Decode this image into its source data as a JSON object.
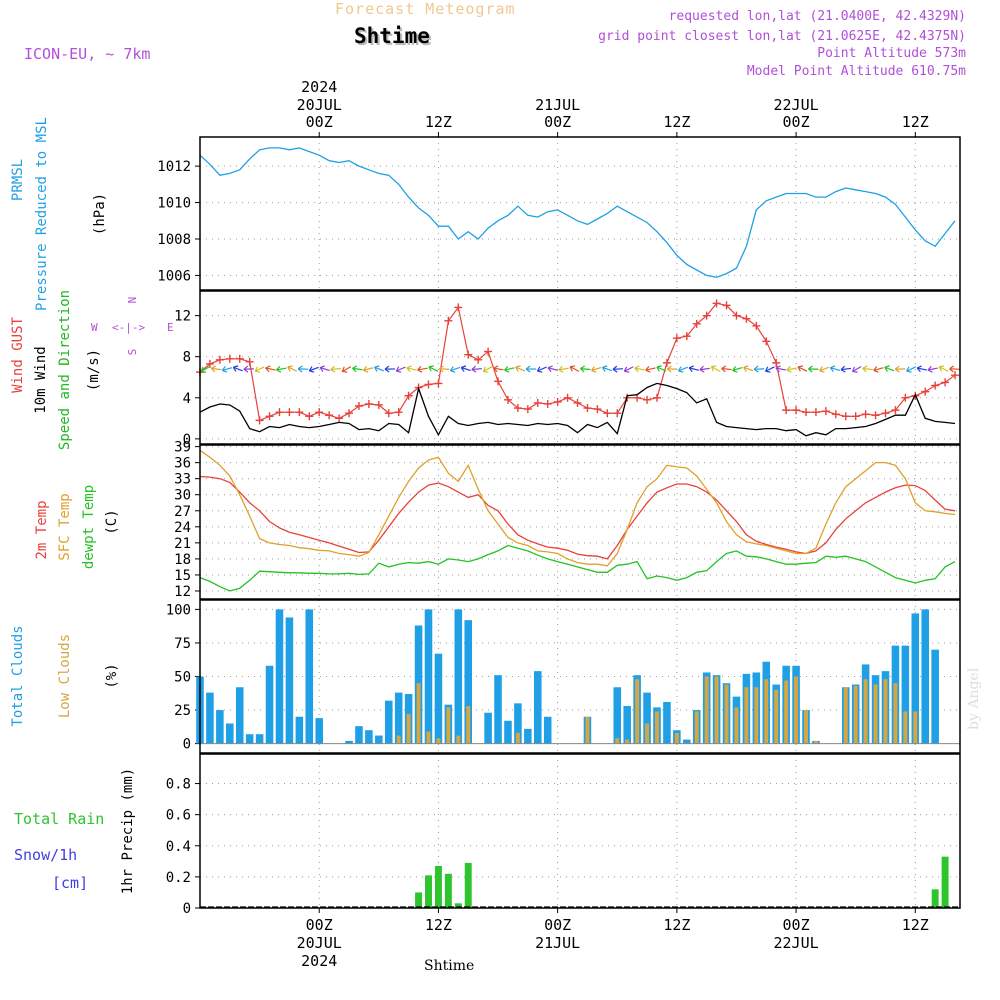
{
  "header": {
    "super_title": "Forecast Meteogram",
    "location": "Shtime",
    "model": "ICON-EU, ~ 7km",
    "requested": "requested lon,lat (21.0400E, 42.4329N)",
    "gridpoint": "grid point closest lon,lat (21.0625E, 42.4375N)",
    "point_alt": "Point Altitude 573m",
    "model_alt": "Model Point Altitude 610.75m",
    "footer_location": "Shtime",
    "watermark": "by Angel"
  },
  "compass": {
    "n": "N",
    "e": "E",
    "w": "W",
    "s": "S",
    "glyph": "<-|->"
  },
  "time_axis": {
    "year": "2024",
    "ticks": [
      {
        "t": 12,
        "label": "00Z",
        "date": "20JUL"
      },
      {
        "t": 24,
        "label": "12Z"
      },
      {
        "t": 36,
        "label": "00Z",
        "date": "21JUL"
      },
      {
        "t": 48,
        "label": "12Z"
      },
      {
        "t": 60,
        "label": "00Z",
        "date": "22JUL"
      },
      {
        "t": 72,
        "label": "12Z"
      }
    ],
    "range_hours": [
      0,
      76.5
    ]
  },
  "colors": {
    "pressure": "#1fa0e6",
    "gust": "#e8413a",
    "wind": "#000000",
    "windlabel": "#22b822",
    "sfc": "#e0a02a",
    "t2m": "#e8413a",
    "dew": "#22c322",
    "total_clouds": "#1fa0e6",
    "low_clouds": "#d8a640",
    "rain": "#2ec42e",
    "snow": "#4040e0",
    "title_meta": "#b24fd8",
    "compass": "#b24fd8",
    "wind_arrow_palette": [
      "#22c322",
      "#e0a02a",
      "#1fa0e6",
      "#2040e0",
      "#9040d0",
      "#d0c020",
      "#e05020"
    ]
  },
  "chart_data": [
    {
      "panel": "pressure",
      "type": "line",
      "ylabel_lines": [
        "PRMSL",
        "Pressure Reduced to MSL"
      ],
      "unit": "(hPa)",
      "ylim": [
        1005.2,
        1013.6
      ],
      "yticks": [
        1006,
        1008,
        1010,
        1012
      ],
      "grid": true,
      "t": [
        0,
        1,
        2,
        3,
        4,
        5,
        6,
        7,
        8,
        9,
        10,
        11,
        12,
        13,
        14,
        15,
        16,
        17,
        18,
        19,
        20,
        21,
        22,
        23,
        24,
        25,
        26,
        27,
        28,
        29,
        30,
        31,
        32,
        33,
        34,
        35,
        36,
        37,
        38,
        39,
        40,
        41,
        42,
        43,
        44,
        45,
        46,
        47,
        48,
        49,
        50,
        51,
        52,
        53,
        54,
        55,
        56,
        57,
        58,
        59,
        60,
        61,
        62,
        63,
        64,
        65,
        66,
        67,
        68,
        69,
        70,
        71,
        72,
        73,
        74,
        75,
        76
      ],
      "values": [
        1012.6,
        1012.1,
        1011.5,
        1011.6,
        1011.8,
        1012.4,
        1012.9,
        1013.0,
        1013.0,
        1012.9,
        1013.0,
        1012.8,
        1012.6,
        1012.3,
        1012.2,
        1012.3,
        1012.0,
        1011.8,
        1011.6,
        1011.5,
        1011.0,
        1010.3,
        1009.7,
        1009.3,
        1008.7,
        1008.7,
        1008.0,
        1008.4,
        1008.0,
        1008.6,
        1009.0,
        1009.3,
        1009.8,
        1009.3,
        1009.2,
        1009.5,
        1009.6,
        1009.3,
        1009.0,
        1008.8,
        1009.1,
        1009.4,
        1009.8,
        1009.5,
        1009.2,
        1008.9,
        1008.4,
        1007.8,
        1007.1,
        1006.6,
        1006.3,
        1006.0,
        1005.9,
        1006.1,
        1006.4,
        1007.6,
        1009.6,
        1010.1,
        1010.3,
        1010.5,
        1010.5,
        1010.5,
        1010.3,
        1010.3,
        1010.6,
        1010.8,
        1010.7,
        1010.6,
        1010.5,
        1010.3,
        1009.9,
        1009.2,
        1008.5,
        1007.9,
        1007.6,
        1008.3,
        1009.0
      ]
    },
    {
      "panel": "wind",
      "type": "line",
      "ylabel_lines": [
        "Wind GUST",
        "10m Wind",
        "Speed and Direction"
      ],
      "unit": "(m/s)",
      "ylim": [
        -0.5,
        14.4
      ],
      "yticks": [
        0,
        4,
        8,
        12
      ],
      "grid": true,
      "t": [
        0,
        1,
        2,
        3,
        4,
        5,
        6,
        7,
        8,
        9,
        10,
        11,
        12,
        13,
        14,
        15,
        16,
        17,
        18,
        19,
        20,
        21,
        22,
        23,
        24,
        25,
        26,
        27,
        28,
        29,
        30,
        31,
        32,
        33,
        34,
        35,
        36,
        37,
        38,
        39,
        40,
        41,
        42,
        43,
        44,
        45,
        46,
        47,
        48,
        49,
        50,
        51,
        52,
        53,
        54,
        55,
        56,
        57,
        58,
        59,
        60,
        61,
        62,
        63,
        64,
        65,
        66,
        67,
        68,
        69,
        70,
        71,
        72,
        73,
        74,
        75,
        76
      ],
      "series": [
        {
          "name": "Wind GUST",
          "values": [
            6.5,
            7.3,
            7.7,
            7.8,
            7.8,
            7.5,
            1.8,
            2.2,
            2.6,
            2.6,
            2.6,
            2.2,
            2.6,
            2.3,
            2.0,
            2.5,
            3.2,
            3.4,
            3.3,
            2.5,
            2.6,
            4.2,
            5.0,
            5.3,
            5.4,
            11.5,
            12.8,
            8.2,
            7.7,
            8.5,
            5.6,
            3.8,
            3.0,
            2.9,
            3.5,
            3.4,
            3.6,
            4.0,
            3.5,
            3.0,
            2.9,
            2.5,
            2.5,
            4.0,
            4.0,
            3.8,
            4.0,
            7.4,
            9.8,
            10.0,
            11.2,
            12.0,
            13.2,
            13.0,
            12.0,
            11.7,
            11.0,
            9.5,
            7.4,
            2.8,
            2.8,
            2.6,
            2.6,
            2.7,
            2.4,
            2.2,
            2.2,
            2.4,
            2.3,
            2.5,
            2.8,
            4.0,
            4.2,
            4.6,
            5.2,
            5.5,
            6.2
          ]
        },
        {
          "name": "10m Wind",
          "values": [
            2.6,
            3.1,
            3.4,
            3.3,
            2.7,
            1.0,
            0.7,
            1.2,
            1.1,
            1.4,
            1.2,
            1.1,
            1.2,
            1.4,
            1.6,
            1.5,
            0.9,
            1.0,
            0.8,
            1.5,
            1.4,
            0.6,
            4.9,
            2.2,
            0.4,
            2.2,
            1.5,
            1.3,
            1.5,
            1.6,
            1.4,
            1.5,
            1.4,
            1.3,
            1.5,
            1.4,
            1.5,
            1.3,
            0.6,
            1.4,
            1.1,
            1.6,
            0.5,
            4.2,
            4.3,
            5.0,
            5.4,
            5.2,
            4.9,
            4.5,
            3.5,
            3.9,
            1.6,
            1.2,
            1.1,
            1.0,
            0.9,
            1.0,
            1.0,
            0.8,
            0.9,
            0.3,
            0.6,
            0.4,
            1.0,
            1.0,
            1.1,
            1.2,
            1.5,
            1.9,
            2.3,
            2.3,
            4.3,
            2.0,
            1.7,
            1.6,
            1.5
          ]
        }
      ],
      "arrows": {
        "y": 6.8,
        "count": 70,
        "note": "wind direction barbs along row"
      }
    },
    {
      "panel": "temperature",
      "type": "line",
      "ylabel_lines": [
        "2m Temp",
        "SFC Temp",
        "dewpt Temp"
      ],
      "unit": "(C)",
      "ylim": [
        10.5,
        39.3
      ],
      "yticks": [
        12,
        15,
        18,
        21,
        24,
        27,
        30,
        33,
        36,
        39
      ],
      "grid": true,
      "t": [
        0,
        1,
        2,
        3,
        4,
        5,
        6,
        7,
        8,
        9,
        10,
        11,
        12,
        13,
        14,
        15,
        16,
        17,
        18,
        19,
        20,
        21,
        22,
        23,
        24,
        25,
        26,
        27,
        28,
        29,
        30,
        31,
        32,
        33,
        34,
        35,
        36,
        37,
        38,
        39,
        40,
        41,
        42,
        43,
        44,
        45,
        46,
        47,
        48,
        49,
        50,
        51,
        52,
        53,
        54,
        55,
        56,
        57,
        58,
        59,
        60,
        61,
        62,
        63,
        64,
        65,
        66,
        67,
        68,
        69,
        70,
        71,
        72,
        73,
        74,
        75,
        76
      ],
      "series": [
        {
          "name": "2m Temp",
          "values": [
            33.4,
            33.3,
            33.0,
            32.3,
            30.5,
            28.5,
            27.0,
            25.0,
            23.8,
            23.0,
            22.5,
            22.0,
            21.5,
            21.0,
            20.4,
            19.8,
            19.2,
            19.3,
            21.5,
            24.0,
            26.5,
            28.6,
            30.5,
            31.8,
            32.2,
            31.5,
            30.5,
            29.5,
            30.0,
            28.0,
            27.0,
            24.5,
            22.5,
            21.5,
            20.8,
            20.2,
            20.0,
            19.6,
            18.9,
            18.6,
            18.5,
            18.0,
            20.5,
            23.5,
            26.0,
            28.5,
            30.5,
            31.3,
            32.0,
            32.0,
            31.5,
            30.5,
            29.0,
            27.0,
            25.0,
            22.5,
            21.3,
            20.7,
            20.2,
            19.8,
            19.3,
            19.0,
            19.5,
            21.0,
            23.5,
            25.5,
            27.0,
            28.5,
            29.5,
            30.5,
            31.3,
            31.8,
            31.7,
            30.8,
            29.0,
            27.3,
            27.0
          ]
        },
        {
          "name": "SFC Temp",
          "values": [
            38.3,
            37.0,
            35.5,
            33.5,
            30.0,
            26.0,
            21.8,
            21.0,
            20.7,
            20.5,
            20.1,
            19.9,
            19.6,
            19.5,
            19.0,
            18.8,
            18.5,
            19.2,
            22.5,
            26.0,
            29.5,
            32.5,
            35.0,
            36.5,
            37.0,
            34.0,
            32.5,
            35.5,
            31.0,
            27.0,
            24.5,
            22.0,
            21.0,
            20.5,
            19.5,
            19.3,
            19.0,
            18.0,
            17.3,
            17.0,
            17.0,
            16.7,
            19.0,
            23.5,
            28.5,
            31.5,
            33.0,
            35.5,
            35.2,
            35.0,
            33.5,
            31.0,
            28.5,
            25.0,
            22.5,
            21.2,
            20.8,
            20.5,
            20.0,
            19.5,
            19.0,
            19.0,
            20.0,
            24.5,
            28.5,
            31.5,
            33.0,
            34.5,
            36.0,
            36.0,
            35.5,
            33.0,
            28.5,
            27.0,
            26.8,
            26.5,
            26.3
          ]
        },
        {
          "name": "dewpt Temp",
          "values": [
            14.5,
            13.8,
            12.8,
            12.0,
            12.5,
            14.0,
            15.7,
            15.6,
            15.5,
            15.4,
            15.4,
            15.3,
            15.3,
            15.2,
            15.2,
            15.3,
            15.1,
            15.2,
            17.2,
            16.5,
            17.0,
            17.3,
            17.2,
            17.5,
            17.0,
            18.0,
            17.8,
            17.5,
            18.0,
            18.8,
            19.5,
            20.5,
            20.0,
            19.5,
            18.7,
            18.0,
            17.5,
            17.0,
            16.5,
            16.0,
            15.5,
            15.5,
            16.8,
            17.0,
            17.5,
            14.3,
            14.8,
            14.5,
            14.0,
            14.5,
            15.5,
            15.8,
            17.5,
            19.0,
            19.5,
            18.5,
            18.4,
            18.0,
            17.5,
            17.0,
            17.0,
            17.2,
            17.3,
            18.5,
            18.3,
            18.5,
            18.0,
            17.5,
            16.5,
            15.5,
            14.5,
            14.0,
            13.5,
            14.0,
            14.3,
            16.5,
            17.5
          ]
        }
      ]
    },
    {
      "panel": "clouds",
      "type": "bar",
      "ylabel_lines": [
        "Total Clouds",
        "Low Clouds"
      ],
      "unit": "(%)",
      "ylim": [
        -7,
        107
      ],
      "yticks": [
        0,
        25,
        50,
        75,
        100
      ],
      "grid": true,
      "t": [
        0,
        1,
        2,
        3,
        4,
        5,
        6,
        7,
        8,
        9,
        10,
        11,
        12,
        13,
        14,
        15,
        16,
        17,
        18,
        19,
        20,
        21,
        22,
        23,
        24,
        25,
        26,
        27,
        28,
        29,
        30,
        31,
        32,
        33,
        34,
        35,
        36,
        37,
        38,
        39,
        40,
        41,
        42,
        43,
        44,
        45,
        46,
        47,
        48,
        49,
        50,
        51,
        52,
        53,
        54,
        55,
        56,
        57,
        58,
        59,
        60,
        61,
        62,
        63,
        64,
        65,
        66,
        67,
        68,
        69,
        70,
        71,
        72,
        73,
        74,
        75,
        76
      ],
      "series": [
        {
          "name": "Total Clouds",
          "values": [
            50,
            38,
            25,
            15,
            42,
            7,
            7,
            58,
            100,
            94,
            20,
            100,
            19,
            0,
            0,
            2,
            13,
            10,
            6,
            32,
            38,
            37,
            88,
            100,
            67,
            29,
            100,
            92,
            0,
            23,
            51,
            17,
            30,
            11,
            54,
            20,
            0,
            0,
            0,
            20,
            0,
            0,
            42,
            28,
            51,
            38,
            27,
            31,
            10,
            3,
            25,
            53,
            51,
            45,
            35,
            52,
            53,
            61,
            44,
            58,
            58,
            25,
            2,
            0,
            0,
            42,
            44,
            59,
            51,
            54,
            73,
            73,
            97,
            100,
            70,
            0,
            0
          ]
        },
        {
          "name": "Low Clouds",
          "values": [
            0,
            0,
            0,
            0,
            0,
            0,
            0,
            0,
            0,
            0,
            0,
            0,
            0,
            0,
            0,
            0,
            0,
            0,
            0,
            0,
            6,
            22,
            45,
            9,
            4,
            27,
            6,
            28,
            0,
            0,
            0,
            0,
            8,
            0,
            0,
            0,
            0,
            0,
            0,
            20,
            0,
            0,
            4,
            3,
            48,
            15,
            24,
            0,
            8,
            0,
            24,
            50,
            50,
            44,
            27,
            42,
            42,
            48,
            40,
            47,
            50,
            25,
            2,
            0,
            0,
            42,
            43,
            48,
            44,
            48,
            45,
            24,
            24,
            0,
            0,
            0,
            0
          ]
        }
      ]
    },
    {
      "panel": "precip",
      "type": "bar",
      "ylabel_lines": [
        "Total  Rain",
        "Snow/1h",
        "[cm]"
      ],
      "unit": "1hr Precip (mm)",
      "ylim": [
        0,
        0.99
      ],
      "yticks": [
        0,
        0.2,
        0.4,
        0.6,
        0.8
      ],
      "ytick_labels": [
        "0",
        "0.2",
        "0.4",
        "0.6",
        "0.8"
      ],
      "grid": true,
      "series": [
        {
          "name": "Total Rain",
          "points": [
            [
              22,
              0.1
            ],
            [
              23,
              0.21
            ],
            [
              24,
              0.27
            ],
            [
              25,
              0.22
            ],
            [
              26,
              0.03
            ],
            [
              27,
              0.29
            ],
            [
              74,
              0.12
            ],
            [
              75,
              0.33
            ]
          ]
        }
      ]
    }
  ]
}
